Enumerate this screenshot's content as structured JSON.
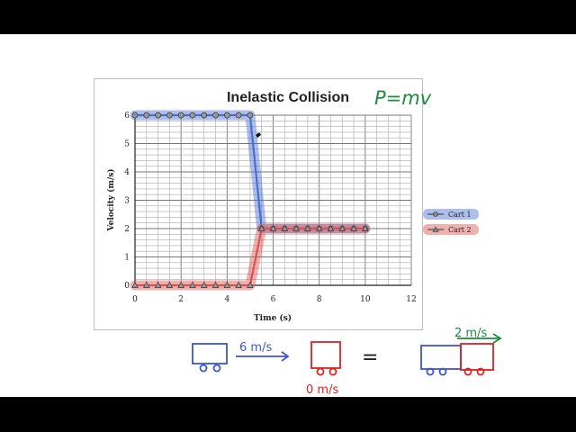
{
  "chart_data": {
    "type": "line",
    "title": "Inelastic Collision",
    "xlabel": "Time (s)",
    "ylabel": "Velocity (m/s)",
    "xlim": [
      0,
      12
    ],
    "ylim": [
      0,
      6
    ],
    "x_ticks": [
      "0",
      "2",
      "4",
      "6",
      "8",
      "10",
      "12"
    ],
    "y_ticks": [
      "0",
      "1",
      "2",
      "3",
      "4",
      "5",
      "6"
    ],
    "grid": true,
    "legend_position": "right",
    "series": [
      {
        "name": "Cart 1",
        "color": "#4a6fd0",
        "x": [
          0,
          0.5,
          1,
          1.5,
          2,
          2.5,
          3,
          3.5,
          4,
          4.5,
          5,
          5.5,
          6,
          6.5,
          7,
          7.5,
          8,
          8.5,
          9,
          9.5,
          10
        ],
        "y": [
          6,
          6,
          6,
          6,
          6,
          6,
          6,
          6,
          6,
          6,
          6,
          2,
          2,
          2,
          2,
          2,
          2,
          2,
          2,
          2,
          2
        ]
      },
      {
        "name": "Cart 2",
        "color": "#d9534f",
        "x": [
          0,
          0.5,
          1,
          1.5,
          2,
          2.5,
          3,
          3.5,
          4,
          4.5,
          5,
          5.5,
          6,
          6.5,
          7,
          7.5,
          8,
          8.5,
          9,
          9.5,
          10
        ],
        "y": [
          0,
          0,
          0,
          0,
          0,
          0,
          0,
          0,
          0,
          0,
          0,
          2,
          2,
          2,
          2,
          2,
          2,
          2,
          2,
          2,
          2
        ]
      }
    ]
  },
  "annotations": {
    "formula": "P=mv",
    "blue_cart_speed": "6 m/s",
    "red_cart_speed": "0 m/s",
    "equals_sign": "=",
    "combined_speed": "2 m/s"
  },
  "colors": {
    "blue_ink": "#3a55d6",
    "red_ink": "#e02020",
    "green_ink": "#1f8a3a"
  }
}
